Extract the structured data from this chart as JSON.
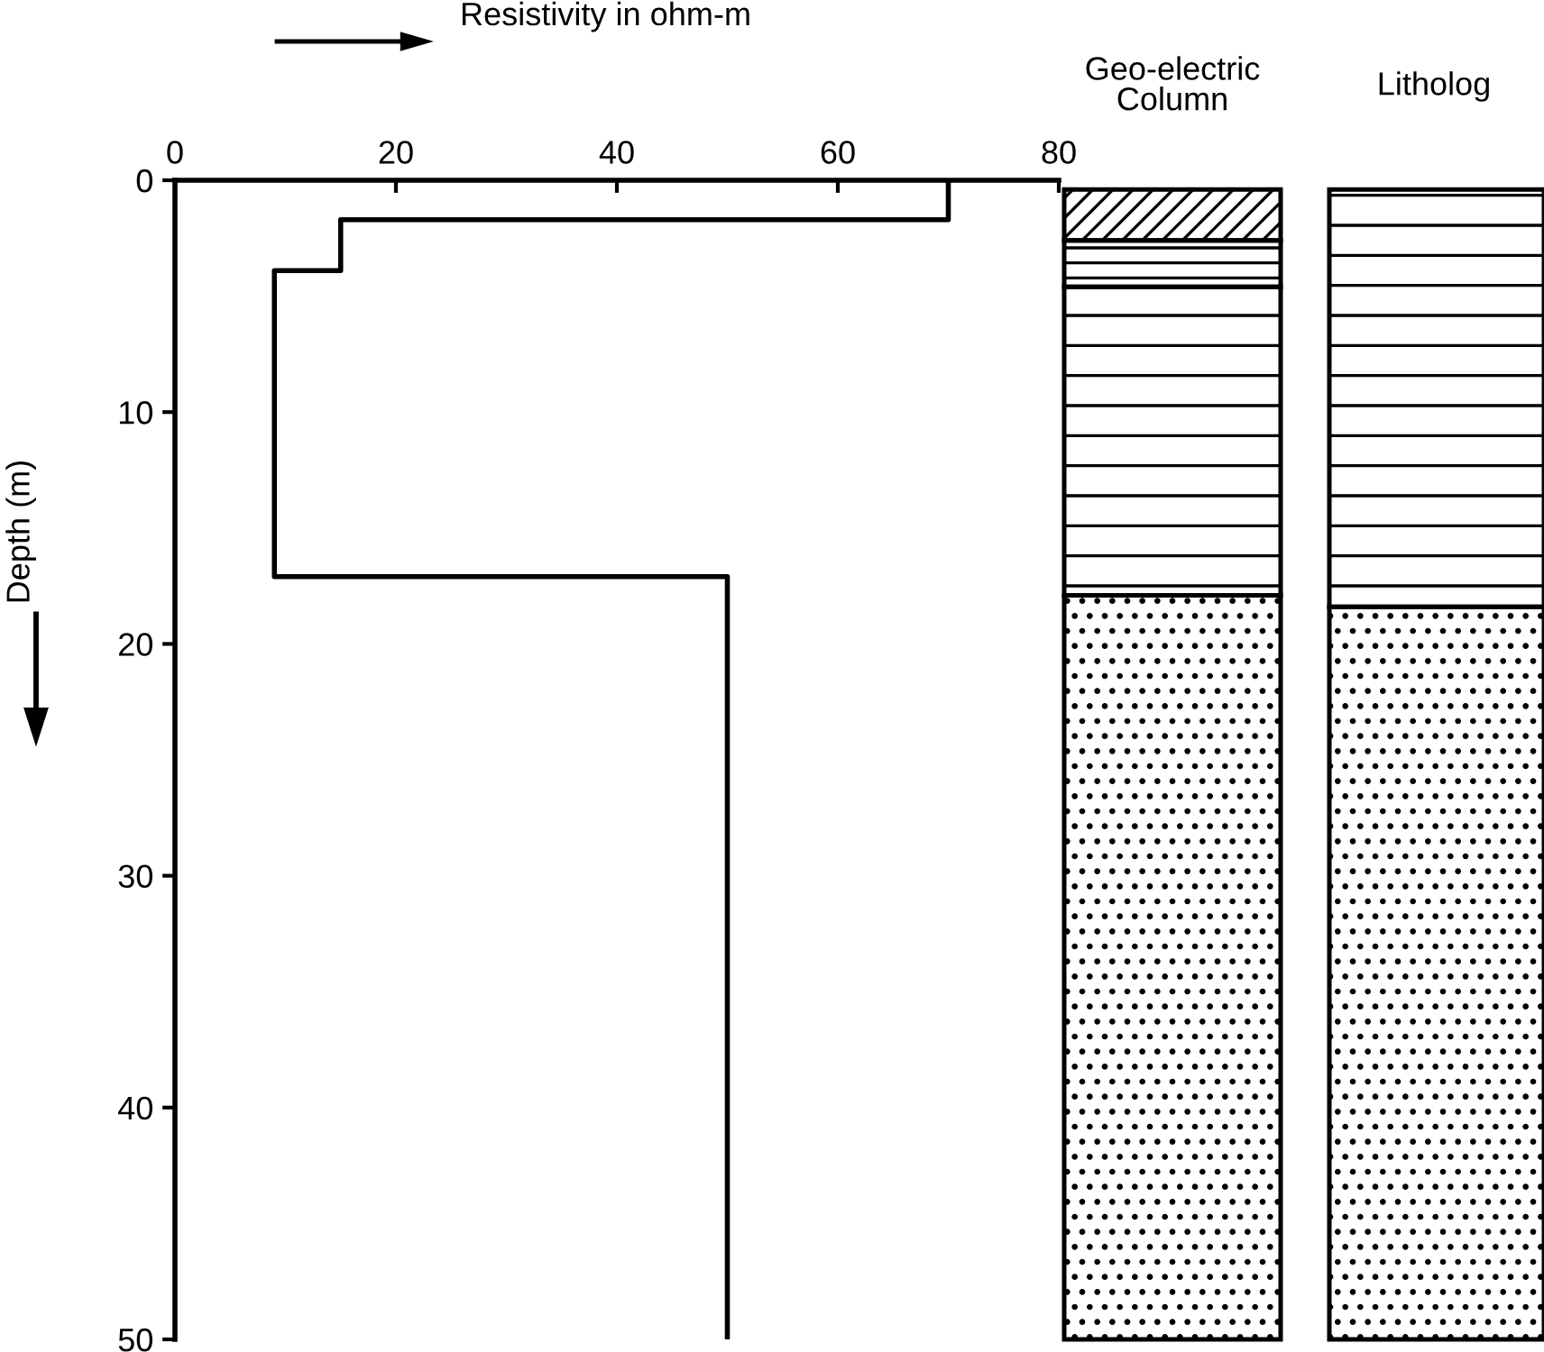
{
  "chart_data": {
    "type": "line",
    "xlabel": "Resistivity in ohm-m",
    "ylabel": "Depth (m)",
    "x": [
      70,
      70,
      15,
      15,
      9,
      9,
      50,
      50
    ],
    "values": [
      0,
      1.7,
      1.7,
      3.9,
      3.9,
      17.1,
      17.1,
      50
    ],
    "color": "#000000",
    "xlim": [
      0,
      80
    ],
    "xticks": [
      0,
      20,
      40,
      60,
      80
    ],
    "ylim": [
      50,
      0
    ],
    "yticks": [
      0,
      10,
      20,
      30,
      40,
      50
    ],
    "annotations": [
      "Geo-electric\nColumn",
      "Litholog"
    ]
  }
}
